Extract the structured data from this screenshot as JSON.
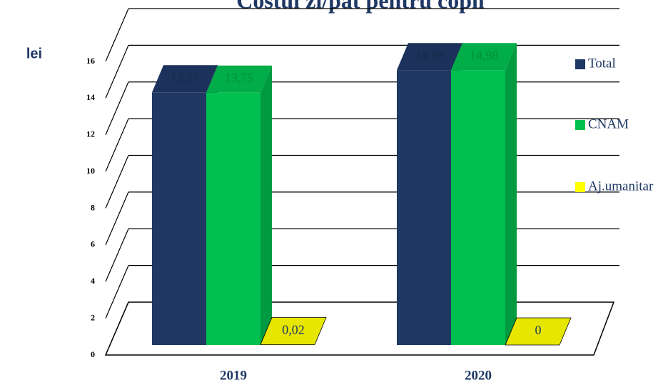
{
  "chart_data": {
    "type": "bar3d",
    "title": "Costul zi/pat pentru copii",
    "y_label": "lei",
    "categories": [
      "2019",
      "2020"
    ],
    "series": [
      {
        "name": "Total",
        "color": "#1f3864",
        "values": [
          13.77,
          14.98
        ],
        "value_labels": [
          "13,77",
          "14,98"
        ]
      },
      {
        "name": "CNAM",
        "color": "#00c050",
        "values": [
          13.75,
          14.98
        ],
        "value_labels": [
          "13,75",
          "14,98"
        ]
      },
      {
        "name": "Aj.umanitar",
        "color": "#ffff00",
        "values": [
          0.02,
          0
        ],
        "value_labels": [
          "0,02",
          "0"
        ]
      }
    ],
    "ylim": [
      0,
      16
    ],
    "yticks": [
      0,
      2,
      4,
      6,
      8,
      10,
      12,
      14,
      16
    ],
    "grid": true,
    "legend": "right"
  }
}
